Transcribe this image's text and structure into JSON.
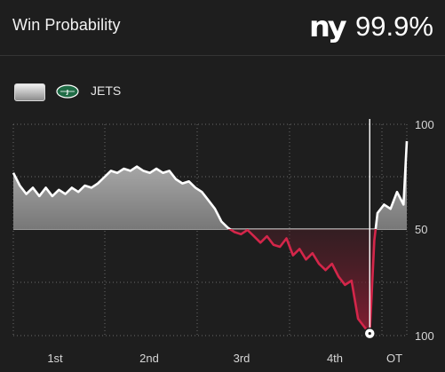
{
  "header": {
    "title": "Win Probability",
    "team_logo": "ny",
    "team_probability": "99.9%"
  },
  "legend": {
    "swatch": "gradient-area-swatch",
    "team_icon": "jets-logo-icon",
    "label": "JETS"
  },
  "colors": {
    "background": "#1e1e1e",
    "home_line": "#ffffff",
    "away_line": "#d4264a",
    "grid": "#6a6a6a"
  },
  "chart_data": {
    "type": "area",
    "grid": true,
    "x_categories": [
      "1st",
      "2nd",
      "3rd",
      "4th",
      "OT"
    ],
    "y_tick_labels": [
      "100",
      "50",
      "100"
    ],
    "ylim": [
      0,
      100
    ],
    "y_midline": 50,
    "series": [
      {
        "name": "JETS",
        "values": [
          [
            0,
            77
          ],
          [
            1,
            71
          ],
          [
            2,
            67
          ],
          [
            3,
            70
          ],
          [
            4,
            66
          ],
          [
            5,
            70
          ],
          [
            6,
            66
          ],
          [
            7,
            69
          ],
          [
            8,
            67
          ],
          [
            9,
            70
          ],
          [
            10,
            68
          ],
          [
            11,
            71
          ],
          [
            12,
            70
          ],
          [
            13,
            72
          ],
          [
            14,
            75
          ],
          [
            15,
            78
          ],
          [
            16,
            77
          ],
          [
            17,
            79
          ],
          [
            18,
            78
          ],
          [
            19,
            80
          ],
          [
            20,
            78
          ],
          [
            21,
            77
          ],
          [
            22,
            79
          ],
          [
            23,
            77
          ],
          [
            24,
            78
          ],
          [
            25,
            74
          ],
          [
            26,
            72
          ],
          [
            27,
            73
          ],
          [
            28,
            70
          ],
          [
            29,
            68
          ],
          [
            30,
            64
          ],
          [
            31,
            60
          ],
          [
            32,
            54
          ],
          [
            33,
            51
          ],
          [
            34,
            49
          ],
          [
            35,
            48
          ],
          [
            36,
            50
          ],
          [
            37,
            47
          ],
          [
            38,
            44
          ],
          [
            39,
            47
          ],
          [
            40,
            43
          ],
          [
            41,
            42
          ],
          [
            42,
            46
          ],
          [
            43,
            38
          ],
          [
            44,
            41
          ],
          [
            45,
            36
          ],
          [
            46,
            39
          ],
          [
            47,
            34
          ],
          [
            48,
            31
          ],
          [
            49,
            34
          ],
          [
            50,
            28
          ],
          [
            51,
            24
          ],
          [
            52,
            26
          ],
          [
            53,
            8
          ],
          [
            54,
            4
          ],
          [
            54.8,
            1
          ],
          [
            55.5,
            45
          ],
          [
            56,
            58
          ],
          [
            57,
            62
          ],
          [
            58,
            60
          ],
          [
            59,
            68
          ],
          [
            60,
            62
          ],
          [
            60.5,
            92
          ]
        ]
      }
    ],
    "end_marker": {
      "x": 54.8,
      "y": 1
    }
  }
}
